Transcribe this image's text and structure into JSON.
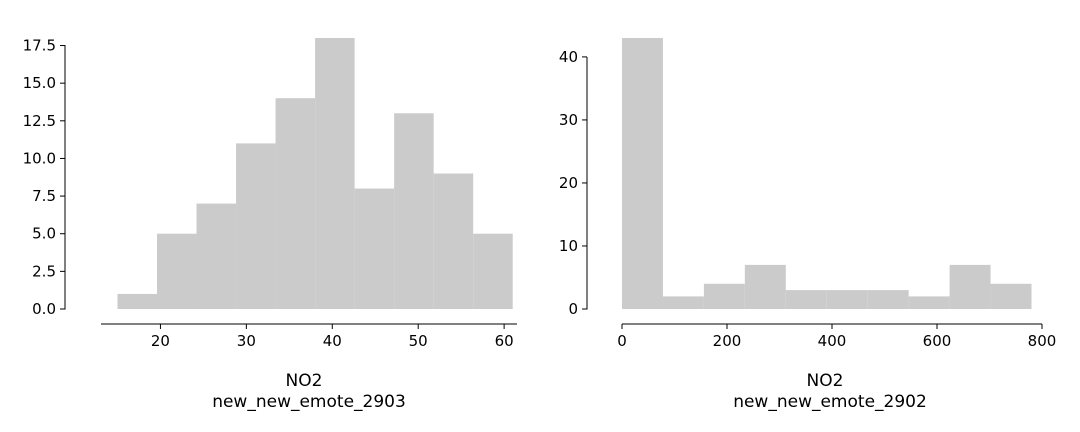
{
  "colors": {
    "bar": "#cbcbcb",
    "axis": "#000000",
    "background": "#ffffff"
  },
  "chart_data": [
    {
      "type": "histogram",
      "xlabel": "NO2",
      "subtitle": "new_new_emote_2903",
      "xlim": [
        12.5,
        61.5
      ],
      "ylim": [
        0,
        18
      ],
      "xticks": [
        20,
        30,
        40,
        50,
        60
      ],
      "yticks": [
        0.0,
        2.5,
        5.0,
        7.5,
        10.0,
        12.5,
        15.0,
        17.5
      ],
      "ytick_labels": [
        "0.0",
        "2.5",
        "5.0",
        "7.5",
        "10.0",
        "12.5",
        "15.0",
        "17.5"
      ],
      "bin_edges": [
        15.0,
        19.6,
        24.2,
        28.8,
        33.4,
        38.0,
        42.6,
        47.2,
        51.8,
        56.4,
        61.0
      ],
      "counts": [
        1,
        5,
        7,
        11,
        14,
        18,
        8,
        13,
        9,
        5
      ],
      "grid": false
    },
    {
      "type": "histogram",
      "xlabel": "NO2",
      "subtitle": "new_new_emote_2902",
      "xlim": [
        0,
        800
      ],
      "ylim": [
        0,
        43
      ],
      "xticks": [
        0,
        200,
        400,
        600,
        800
      ],
      "yticks": [
        0,
        10,
        20,
        30,
        40
      ],
      "ytick_labels": [
        "0",
        "10",
        "20",
        "30",
        "40"
      ],
      "bin_edges": [
        0,
        78,
        156,
        234,
        312,
        390,
        468,
        546,
        624,
        702,
        780
      ],
      "counts": [
        43,
        2,
        4,
        7,
        3,
        3,
        3,
        2,
        7,
        4
      ],
      "grid": false
    }
  ]
}
